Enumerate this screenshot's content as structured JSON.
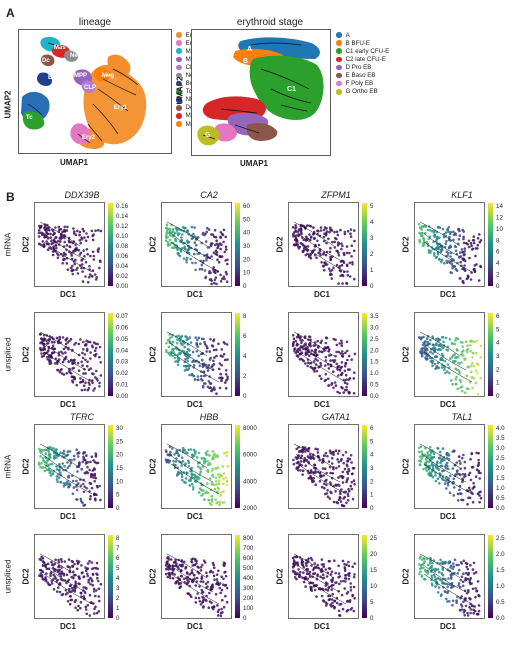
{
  "panel_a": {
    "letter": "A",
    "lineage": {
      "title": "lineage",
      "xlabel": "UMAP1",
      "ylabel": "UMAP2",
      "cluster_labels": [
        "Mast",
        "Mas",
        "Neu",
        "Dc",
        "MPP",
        "Bc",
        "CLP",
        "Meg",
        "Tc",
        "Ery1",
        "Ery2"
      ],
      "legend": [
        {
          "label": "Ery1",
          "color": "#f28e2b"
        },
        {
          "label": "Ery2",
          "color": "#e377c2"
        },
        {
          "label": "Mast",
          "color": "#1fb3c7"
        },
        {
          "label": "MPP",
          "color": "#9467bd"
        },
        {
          "label": "CLP",
          "color": "#b07ad6"
        },
        {
          "label": "Neu",
          "color": "#8c8c8c"
        },
        {
          "label": "Bc",
          "color": "#2a6fb5"
        },
        {
          "label": "Tc",
          "color": "#2ca02c"
        },
        {
          "label": "NK",
          "color": "#1f3f8f"
        },
        {
          "label": "Dc",
          "color": "#8c564b"
        },
        {
          "label": "Mac",
          "color": "#d62728"
        },
        {
          "label": "Meg",
          "color": "#ff7f0e"
        }
      ]
    },
    "erythroid": {
      "title": "erythroid stage",
      "xlabel": "UMAP1",
      "ylabel": "UMAP2",
      "cluster_labels": [
        "A",
        "B",
        "C1",
        "G"
      ],
      "legend": [
        {
          "label": "A",
          "color": "#1f77b4"
        },
        {
          "label": "B BFU-E",
          "color": "#ff7f0e"
        },
        {
          "label": "C1 early CFU-E",
          "color": "#2ca02c"
        },
        {
          "label": "C2 late CFU-E",
          "color": "#d62728"
        },
        {
          "label": "D Pro EB",
          "color": "#9467bd"
        },
        {
          "label": "E Baso EB",
          "color": "#8c564b"
        },
        {
          "label": "F Poly EB",
          "color": "#e377c2"
        },
        {
          "label": "G Ortho EB",
          "color": "#bcbd22"
        }
      ]
    }
  },
  "panel_b": {
    "letter": "B",
    "xlabel": "DC1",
    "ylabel": "DC2",
    "colormap": [
      "#440154",
      "#3b528b",
      "#21918c",
      "#5ec962",
      "#fde725"
    ],
    "genes_top": [
      "DDX39B",
      "CA2",
      "ZFPM1",
      "KLF1"
    ],
    "genes_bottom": [
      "TFRC",
      "HBB",
      "GATA1",
      "TAL1"
    ],
    "row_labels": [
      "mRNA",
      "unspliced",
      "mRNA",
      "unspliced"
    ],
    "ticks": [
      [
        [
          "0.16",
          "0.14",
          "0.12",
          "0.10",
          "0.08",
          "0.06",
          "0.04",
          "0.02",
          "0.00"
        ],
        [
          "60",
          "50",
          "40",
          "30",
          "20",
          "10",
          "0"
        ],
        [
          "5",
          "4",
          "3",
          "2",
          "1",
          "0"
        ],
        [
          "14",
          "12",
          "10",
          "8",
          "6",
          "4",
          "2",
          "0"
        ]
      ],
      [
        [
          "0.07",
          "0.06",
          "0.05",
          "0.04",
          "0.03",
          "0.02",
          "0.01",
          "0.00"
        ],
        [
          "8",
          "6",
          "4",
          "2",
          "0"
        ],
        [
          "3.5",
          "3.0",
          "2.5",
          "2.0",
          "1.5",
          "1.0",
          "0.5",
          "0.0"
        ],
        [
          "6",
          "5",
          "4",
          "3",
          "2",
          "1",
          "0"
        ]
      ],
      [
        [
          "30",
          "25",
          "20",
          "15",
          "10",
          "5",
          "0"
        ],
        [
          "8000",
          "6000",
          "4000",
          "2000"
        ],
        [
          "6",
          "5",
          "4",
          "3",
          "2",
          "1",
          "0"
        ],
        [
          "4.0",
          "3.5",
          "3.0",
          "2.5",
          "2.0",
          "1.5",
          "1.0",
          "0.5",
          "0.0"
        ]
      ],
      [
        [
          "8",
          "7",
          "6",
          "5",
          "4",
          "3",
          "2",
          "1",
          "0"
        ],
        [
          "800",
          "700",
          "600",
          "500",
          "400",
          "300",
          "200",
          "100",
          "0"
        ],
        [
          "25",
          "20",
          "15",
          "10",
          "5",
          "0"
        ],
        [
          "2.5",
          "2.0",
          "1.5",
          "1.0",
          "0.5",
          "0.0"
        ]
      ]
    ]
  }
}
